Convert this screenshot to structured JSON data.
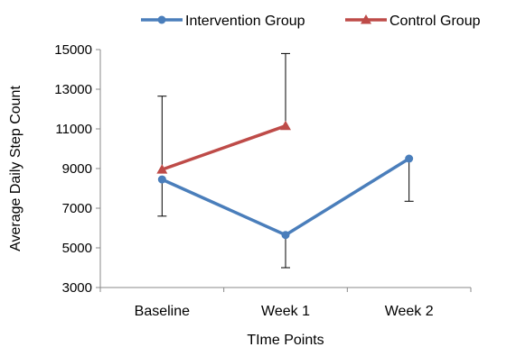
{
  "chart_data": {
    "type": "line",
    "xlabel": "TIme Points",
    "ylabel": "Average Daily Step Count",
    "categories": [
      "Baseline",
      "Week 1",
      "Week 2"
    ],
    "ylim": [
      3000,
      15000
    ],
    "yticks": [
      3000,
      5000,
      7000,
      9000,
      11000,
      13000,
      15000
    ],
    "grid": false,
    "legend_position": "top",
    "series": [
      {
        "name": "Intervention Group",
        "color": "#4a7ebb",
        "marker": "circle",
        "values": [
          8450,
          5650,
          9500
        ],
        "error_low": [
          6600,
          4000,
          7350
        ],
        "error_high": [
          null,
          null,
          null
        ]
      },
      {
        "name": "Control Group",
        "color": "#be4b48",
        "marker": "triangle",
        "values": [
          8950,
          11150,
          null
        ],
        "error_low": [
          null,
          null,
          null
        ],
        "error_high": [
          12650,
          14800,
          null
        ]
      }
    ]
  }
}
